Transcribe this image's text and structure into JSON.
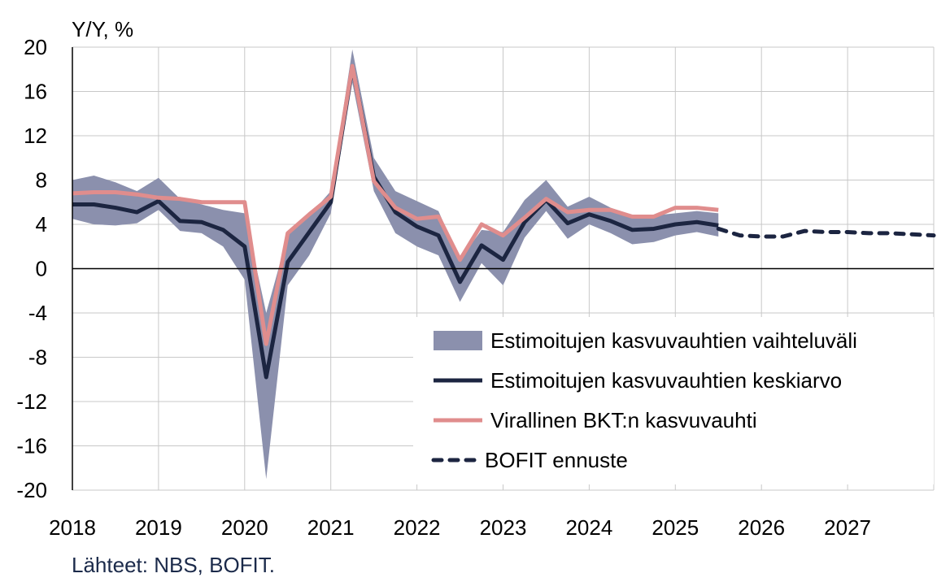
{
  "chart_data": {
    "type": "line",
    "ylabel": "Y/Y, %",
    "ylim": [
      -20,
      20
    ],
    "yticks": [
      20,
      16,
      12,
      8,
      4,
      0,
      -4,
      -8,
      -12,
      -16,
      -20
    ],
    "xlim": [
      2018.0,
      2028.0
    ],
    "xticks": [
      "2018",
      "2019",
      "2020",
      "2021",
      "2022",
      "2023",
      "2024",
      "2025",
      "2026",
      "2027"
    ],
    "grid": true,
    "legend_position": "bottom-right",
    "source": "Lähteet: NBS, BOFIT.",
    "colors": {
      "range": "#8b90ad",
      "mean": "#1c2541",
      "official": "#e08d8d",
      "forecast": "#1c2541"
    },
    "series": [
      {
        "name": "Estimoitujen kasvuvauhtien vaihteluväli",
        "kind": "band",
        "x": [
          2018.0,
          2018.25,
          2018.5,
          2018.75,
          2019.0,
          2019.25,
          2019.5,
          2019.75,
          2020.0,
          2020.25,
          2020.5,
          2020.75,
          2021.0,
          2021.25,
          2021.5,
          2021.75,
          2022.0,
          2022.25,
          2022.5,
          2022.75,
          2023.0,
          2023.25,
          2023.5,
          2023.75,
          2024.0,
          2024.25,
          2024.5,
          2024.75,
          2025.0,
          2025.25,
          2025.5
        ],
        "low": [
          4.5,
          4.0,
          3.9,
          4.1,
          5.3,
          3.4,
          3.2,
          2.0,
          -1.0,
          -19.0,
          -1.5,
          1.2,
          5.0,
          16.8,
          7.0,
          3.2,
          2.0,
          1.2,
          -3.0,
          0.5,
          -1.5,
          2.8,
          5.2,
          2.7,
          4.0,
          3.2,
          2.2,
          2.4,
          3.0,
          3.3,
          2.9
        ],
        "high": [
          8.0,
          8.4,
          7.8,
          7.0,
          8.2,
          6.3,
          5.8,
          5.3,
          5.0,
          -4.0,
          3.0,
          4.8,
          7.0,
          19.8,
          10.0,
          7.0,
          6.1,
          5.2,
          0.8,
          3.5,
          3.3,
          6.2,
          8.0,
          5.6,
          6.5,
          5.5,
          4.8,
          4.8,
          5.0,
          5.2,
          5.0
        ]
      },
      {
        "name": "Estimoitujen kasvuvauhtien keskiarvo",
        "kind": "line",
        "x": [
          2018.0,
          2018.25,
          2018.5,
          2018.75,
          2019.0,
          2019.25,
          2019.5,
          2019.75,
          2020.0,
          2020.25,
          2020.5,
          2020.75,
          2021.0,
          2021.25,
          2021.5,
          2021.75,
          2022.0,
          2022.25,
          2022.5,
          2022.75,
          2023.0,
          2023.25,
          2023.5,
          2023.75,
          2024.0,
          2024.25,
          2024.5,
          2024.75,
          2025.0,
          2025.25,
          2025.5
        ],
        "values": [
          5.8,
          5.8,
          5.5,
          5.1,
          6.1,
          4.3,
          4.2,
          3.5,
          2.0,
          -9.8,
          0.6,
          3.3,
          6.0,
          18.2,
          8.3,
          5.1,
          3.8,
          3.0,
          -1.2,
          2.1,
          0.8,
          4.2,
          6.2,
          4.1,
          4.9,
          4.3,
          3.5,
          3.6,
          4.0,
          4.2,
          3.9
        ]
      },
      {
        "name": "Virallinen BKT:n kasvuvauhti",
        "kind": "line",
        "x": [
          2018.0,
          2018.25,
          2018.5,
          2018.75,
          2019.0,
          2019.25,
          2019.5,
          2019.75,
          2020.0,
          2020.25,
          2020.5,
          2020.75,
          2021.0,
          2021.25,
          2021.5,
          2021.75,
          2022.0,
          2022.25,
          2022.5,
          2022.75,
          2023.0,
          2023.25,
          2023.5,
          2023.75,
          2024.0,
          2024.25,
          2024.5,
          2024.75,
          2025.0,
          2025.25,
          2025.5
        ],
        "values": [
          6.8,
          6.9,
          6.9,
          6.7,
          6.4,
          6.3,
          6.0,
          6.0,
          6.0,
          -6.8,
          3.2,
          4.9,
          6.5,
          18.3,
          7.9,
          5.5,
          4.5,
          4.7,
          0.8,
          4.0,
          3.0,
          4.6,
          6.3,
          5.1,
          5.3,
          5.3,
          4.7,
          4.7,
          5.5,
          5.5,
          5.3
        ]
      },
      {
        "name": "BOFIT ennuste",
        "kind": "dashed",
        "x": [
          2025.5,
          2025.75,
          2026.0,
          2026.25,
          2026.5,
          2026.75,
          2027.0,
          2027.25,
          2027.5,
          2027.75,
          2028.0
        ],
        "values": [
          3.6,
          3.0,
          2.9,
          2.9,
          3.4,
          3.3,
          3.3,
          3.2,
          3.2,
          3.1,
          3.0
        ]
      }
    ]
  }
}
